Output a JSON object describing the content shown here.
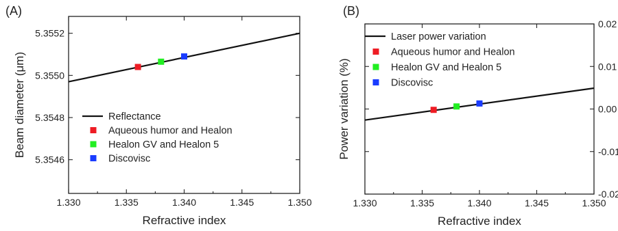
{
  "chart_data": [
    {
      "type": "line",
      "panel_label": "(A)",
      "xlabel": "Refractive index",
      "ylabel": "Beam diameter (μm)",
      "xlim": [
        1.33,
        1.35
      ],
      "ylim": [
        5.35444,
        5.35528
      ],
      "x_ticks": [
        "1.330",
        "1.335",
        "1.340",
        "1.345",
        "1.350"
      ],
      "x_tick_values": [
        1.33,
        1.335,
        1.34,
        1.345,
        1.35
      ],
      "y_ticks": [
        "5.3546",
        "5.3548",
        "5.3550",
        "5.3552"
      ],
      "y_tick_values": [
        5.3546,
        5.3548,
        5.355,
        5.3552
      ],
      "y_axis_side": "left",
      "grid": false,
      "legend_position": "lower-right",
      "series": [
        {
          "name": "Reflectance",
          "kind": "line",
          "color": "#111111",
          "x": [
            1.33,
            1.35
          ],
          "y": [
            5.35497,
            5.3552
          ]
        },
        {
          "name": "Aqueous humor and Healon",
          "kind": "marker",
          "color": "#ee1c24",
          "x": [
            1.336
          ],
          "y": [
            5.35504
          ]
        },
        {
          "name": "Healon GV and Healon 5",
          "kind": "marker",
          "color": "#22ee22",
          "x": [
            1.338
          ],
          "y": [
            5.355065
          ]
        },
        {
          "name": "Discovisc",
          "kind": "marker",
          "color": "#1a3cff",
          "x": [
            1.34
          ],
          "y": [
            5.35509
          ]
        }
      ]
    },
    {
      "type": "line",
      "panel_label": "(B)",
      "xlabel": "Refractive index",
      "ylabel": "Power variation (%)",
      "xlim": [
        1.33,
        1.35
      ],
      "ylim": [
        -0.02,
        0.02
      ],
      "x_ticks": [
        "1.330",
        "1.335",
        "1.340",
        "1.345",
        "1.350"
      ],
      "x_tick_values": [
        1.33,
        1.335,
        1.34,
        1.345,
        1.35
      ],
      "y_ticks": [
        "-0.02",
        "-0.01",
        "0.00",
        "0.01",
        "0.02"
      ],
      "y_tick_values": [
        -0.02,
        -0.01,
        0.0,
        0.01,
        0.02
      ],
      "y_axis_side": "right",
      "grid": false,
      "legend_position": "top-left",
      "series": [
        {
          "name": "Laser power variation",
          "kind": "line",
          "color": "#111111",
          "x": [
            1.33,
            1.35
          ],
          "y": [
            -0.0026,
            0.0049
          ]
        },
        {
          "name": "Aqueous humor and Healon",
          "kind": "marker",
          "color": "#ee1c24",
          "x": [
            1.336
          ],
          "y": [
            -0.0002
          ]
        },
        {
          "name": "Healon GV and Healon 5",
          "kind": "marker",
          "color": "#22ee22",
          "x": [
            1.338
          ],
          "y": [
            0.0006
          ]
        },
        {
          "name": "Discovisc",
          "kind": "marker",
          "color": "#1a3cff",
          "x": [
            1.34
          ],
          "y": [
            0.0013
          ]
        }
      ]
    }
  ]
}
